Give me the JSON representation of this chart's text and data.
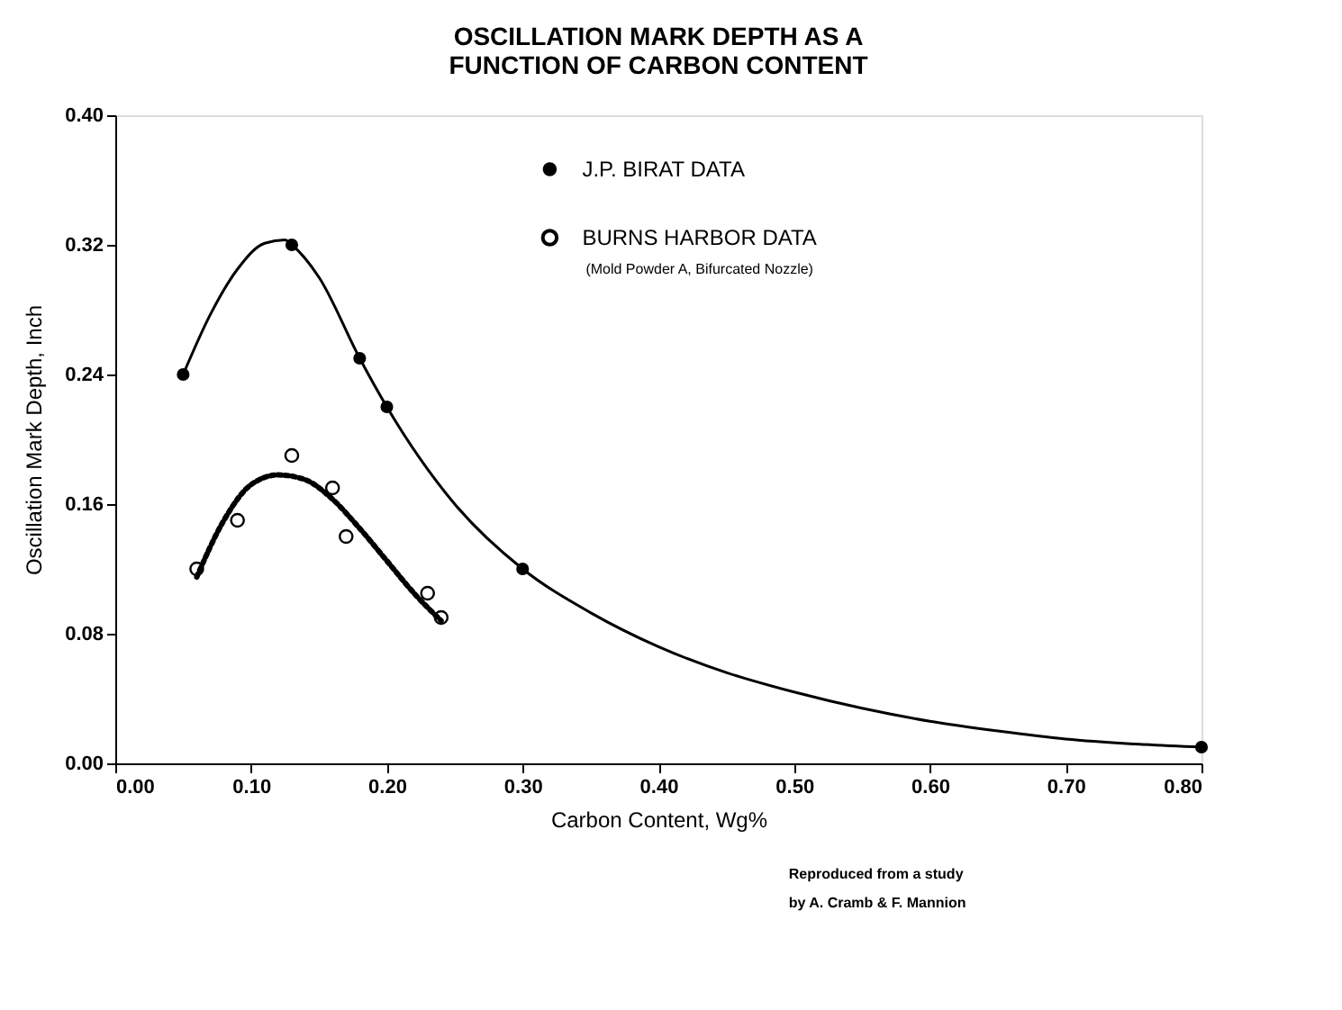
{
  "chart_data": {
    "type": "scatter",
    "title": "OSCILLATION MARK DEPTH AS A\nFUNCTION OF CARBON CONTENT",
    "xlabel": "Carbon Content, Wg%",
    "ylabel": "Oscillation Mark Depth, Inch",
    "xlim": [
      0,
      0.8
    ],
    "ylim": [
      0,
      0.4
    ],
    "xticks": [
      {
        "value": 0,
        "label": "0.00"
      },
      {
        "value": 0.1,
        "label": "0.10"
      },
      {
        "value": 0.2,
        "label": "0.20"
      },
      {
        "value": 0.3,
        "label": "0.30"
      },
      {
        "value": 0.4,
        "label": "0.40"
      },
      {
        "value": 0.5,
        "label": "0.50"
      },
      {
        "value": 0.6,
        "label": "0.60"
      },
      {
        "value": 0.7,
        "label": "0.70"
      },
      {
        "value": 0.8,
        "label": "0.80"
      }
    ],
    "yticks": [
      {
        "value": 0,
        "label": "0.00"
      },
      {
        "value": 0.08,
        "label": "0.08"
      },
      {
        "value": 0.16,
        "label": "0.16"
      },
      {
        "value": 0.24,
        "label": "0.24"
      },
      {
        "value": 0.32,
        "label": "0.32"
      },
      {
        "value": 0.4,
        "label": "0.40"
      }
    ],
    "grid": false,
    "legend": "top right",
    "series": [
      {
        "name": "J.P. BIRAT DATA",
        "type": "scatter",
        "marker": "circle",
        "color": "#000000",
        "x": [
          0.05,
          0.13,
          0.18,
          0.2,
          0.3,
          0.8
        ],
        "values": [
          0.24,
          0.32,
          0.25,
          0.22,
          0.12,
          0.01
        ]
      },
      {
        "name": "BURNS HARBOR DATA",
        "type": "scatter",
        "marker": "circle",
        "color": "#000000",
        "x": [
          0.06,
          0.09,
          0.13,
          0.16,
          0.17,
          0.23,
          0.24
        ],
        "values": [
          0.12,
          0.15,
          0.19,
          0.17,
          0.14,
          0.105,
          0.09
        ]
      },
      {
        "type": "line",
        "line_style": "solid",
        "color": "#000000",
        "x": [
          0.05,
          0.07,
          0.09,
          0.11,
          0.125,
          0.13,
          0.15,
          0.18,
          0.2,
          0.25,
          0.3,
          0.35,
          0.4,
          0.45,
          0.5,
          0.55,
          0.6,
          0.65,
          0.7,
          0.75,
          0.8
        ],
        "values": [
          0.24,
          0.277,
          0.305,
          0.321,
          0.323,
          0.32,
          0.3,
          0.25,
          0.22,
          0.16,
          0.12,
          0.093,
          0.072,
          0.056,
          0.044,
          0.034,
          0.026,
          0.02,
          0.015,
          0.012,
          0.01
        ]
      },
      {
        "type": "line",
        "line_style": "dotted",
        "color": "#000000",
        "x": [
          0.06,
          0.08,
          0.1,
          0.12,
          0.14,
          0.16,
          0.18,
          0.2,
          0.22,
          0.24
        ],
        "values": [
          0.115,
          0.15,
          0.172,
          0.178,
          0.175,
          0.163,
          0.145,
          0.125,
          0.105,
          0.088
        ]
      }
    ],
    "annotations": [
      "(Mold Powder A, Bifurcated Nozzle)",
      "Reproduced from a study",
      "by A. Cramb & F. Mannion"
    ]
  }
}
